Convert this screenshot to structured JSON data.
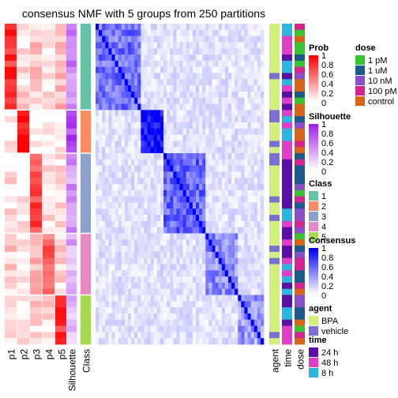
{
  "chart_data": {
    "type": "heatmap",
    "title": "consensus NMF with 5 groups from 250 partitions",
    "prob_columns": [
      "p1",
      "p2",
      "p3",
      "p4",
      "p5"
    ],
    "column_labels": [
      "p1",
      "p2",
      "p3",
      "p4",
      "p5",
      "Silhouette",
      "Class",
      "agent",
      "time",
      "dose"
    ],
    "groups": [
      {
        "class": "1",
        "n": 14,
        "prob": [
          0.8,
          0.15,
          0.2,
          0.15,
          0.3
        ],
        "silhouette": 0.55,
        "consensus": 0.55
      },
      {
        "class": "2",
        "n": 7,
        "prob": [
          0.02,
          0.98,
          0.02,
          0.02,
          0.02
        ],
        "silhouette": 0.85,
        "consensus": 0.95
      },
      {
        "class": "3",
        "n": 13,
        "prob": [
          0.1,
          0.05,
          0.7,
          0.15,
          0.1
        ],
        "silhouette": 0.45,
        "consensus": 0.6
      },
      {
        "class": "4",
        "n": 10,
        "prob": [
          0.2,
          0.05,
          0.25,
          0.6,
          0.15
        ],
        "silhouette": 0.35,
        "consensus": 0.45
      },
      {
        "class": "5",
        "n": 8,
        "prob": [
          0.1,
          0.05,
          0.15,
          0.15,
          0.8
        ],
        "silhouette": 0.25,
        "consensus": 0.4
      }
    ],
    "legends": [
      {
        "title": "Prob",
        "kind": "gradient",
        "ticks": [
          "1",
          "0.8",
          "0.6",
          "0.4",
          "0.2",
          "0"
        ],
        "from": "#ffffff",
        "to": "#ff0000"
      },
      {
        "title": "Silhouette",
        "kind": "gradient",
        "ticks": [
          "1",
          "0.8",
          "0.6",
          "0.4",
          "0.2",
          "0"
        ],
        "from": "#ffffff",
        "to": "#a020f0"
      },
      {
        "title": "Class",
        "kind": "discrete",
        "items": [
          {
            "label": "1",
            "color": "#66c2a5"
          },
          {
            "label": "2",
            "color": "#fc8d62"
          },
          {
            "label": "3",
            "color": "#8da0cb"
          },
          {
            "label": "4",
            "color": "#e78ac3"
          },
          {
            "label": "5",
            "color": "#a6d854"
          }
        ]
      },
      {
        "title": "Consensus",
        "kind": "gradient",
        "ticks": [
          "1",
          "0.8",
          "0.6",
          "0.4",
          "0.2",
          "0"
        ],
        "from": "#ffffff",
        "to": "#0000ff"
      },
      {
        "title": "agent",
        "kind": "discrete",
        "items": [
          {
            "label": "BPA",
            "color": "#d2ef7b"
          },
          {
            "label": "vehicle",
            "color": "#7b6fd6"
          }
        ]
      },
      {
        "title": "time",
        "kind": "discrete",
        "items": [
          {
            "label": "24 h",
            "color": "#5b0fa8"
          },
          {
            "label": "48 h",
            "color": "#e03dc8"
          },
          {
            "label": "8 h",
            "color": "#2ab6e0"
          }
        ]
      },
      {
        "title": "dose",
        "kind": "discrete",
        "items": [
          {
            "label": "1 pM",
            "color": "#38c431"
          },
          {
            "label": "1 uM",
            "color": "#1a5a8c"
          },
          {
            "label": "10 nM",
            "color": "#8a4fc8"
          },
          {
            "label": "100 pM",
            "color": "#d6248f"
          },
          {
            "label": "control",
            "color": "#d8641a"
          }
        ]
      }
    ]
  }
}
